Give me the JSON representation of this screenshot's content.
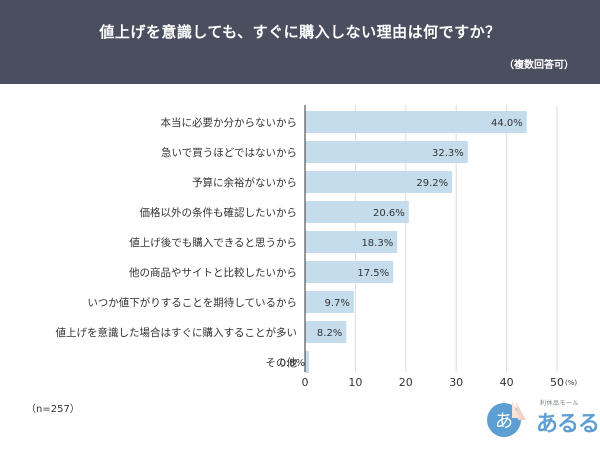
{
  "header": {
    "title": "値上げを意識しても、すぐに購入しない理由は何ですか？",
    "subtitle": "（複数回答可）"
  },
  "footnote": "（n=257）",
  "logo": {
    "sub": "利休品モール",
    "main": "あるる",
    "mark": "あ"
  },
  "colors": {
    "header_bg": "#4a4e5e",
    "bar": "#c5dcec",
    "grid": "#dddddd",
    "axis": "#333333"
  },
  "chart_data": {
    "type": "bar",
    "orientation": "horizontal",
    "categories": [
      "本当に必要か分からないから",
      "急いで買うほどではないから",
      "予算に余裕がないから",
      "価格以外の条件も確認したいから",
      "値上げ後でも購入できると思うから",
      "他の商品やサイトと比較したいから",
      "いつか値下がりすることを期待しているから",
      "値上げを意識した場合はすぐに購入することが多い",
      "その他"
    ],
    "values": [
      44.0,
      32.3,
      29.2,
      20.6,
      18.3,
      17.5,
      9.7,
      8.2,
      0.8
    ],
    "value_labels": [
      "44.0%",
      "32.3%",
      "29.2%",
      "20.6%",
      "18.3%",
      "17.5%",
      "9.7%",
      "8.2%",
      "0.8%"
    ],
    "xlim": [
      0,
      50
    ],
    "xticks": [
      "0",
      "10",
      "20",
      "30",
      "40",
      "50"
    ],
    "unit_label": "(%)",
    "grid": true
  }
}
